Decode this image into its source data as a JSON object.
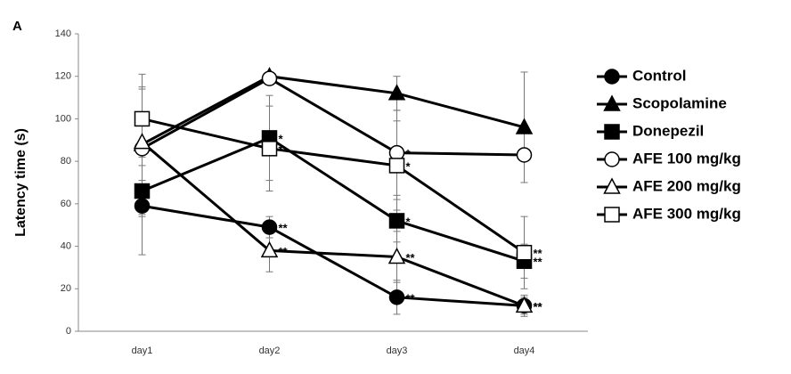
{
  "chart_data": {
    "type": "line",
    "panel_label": "A",
    "y_label": "Latency time (s)",
    "categories": [
      "day1",
      "day2",
      "day3",
      "day4"
    ],
    "ylim": [
      0,
      140
    ],
    "yticks": [
      0,
      20,
      40,
      60,
      80,
      100,
      120,
      140
    ],
    "series": [
      {
        "name": "Control",
        "color": "#000000",
        "marker": "circle",
        "filled": true,
        "values": [
          59,
          49,
          16,
          12
        ],
        "errors": [
          23,
          5,
          8,
          4
        ],
        "significance": [
          null,
          "**",
          "**",
          "**"
        ]
      },
      {
        "name": "Scopolamine",
        "color": "#000000",
        "marker": "triangle",
        "filled": true,
        "values": [
          88,
          120,
          112,
          96
        ],
        "errors": [
          33,
          0,
          8,
          26
        ],
        "significance": [
          null,
          null,
          null,
          null
        ]
      },
      {
        "name": "Donepezil",
        "color": "#000000",
        "marker": "square",
        "filled": true,
        "values": [
          66,
          91,
          52,
          33
        ],
        "errors": [
          12,
          20,
          10,
          8
        ],
        "significance": [
          null,
          "*",
          "*",
          "**"
        ]
      },
      {
        "name": "AFE 100 mg/kg",
        "color": "#000000",
        "marker": "circle",
        "filled": false,
        "values": [
          86,
          119,
          84,
          83
        ],
        "errors": [
          15,
          0,
          20,
          13
        ],
        "significance": [
          null,
          null,
          "*",
          null
        ]
      },
      {
        "name": "AFE 200 mg/kg",
        "color": "#000000",
        "marker": "triangle",
        "filled": false,
        "values": [
          89,
          38,
          35,
          12
        ],
        "errors": [
          25,
          10,
          12,
          5
        ],
        "significance": [
          null,
          "**",
          "**",
          "**"
        ]
      },
      {
        "name": "AFE 300 mg/kg",
        "color": "#000000",
        "marker": "square",
        "filled": false,
        "values": [
          100,
          86,
          78,
          37
        ],
        "errors": [
          15,
          20,
          21,
          17
        ],
        "significance": [
          null,
          "*",
          "*",
          "**"
        ]
      }
    ]
  }
}
